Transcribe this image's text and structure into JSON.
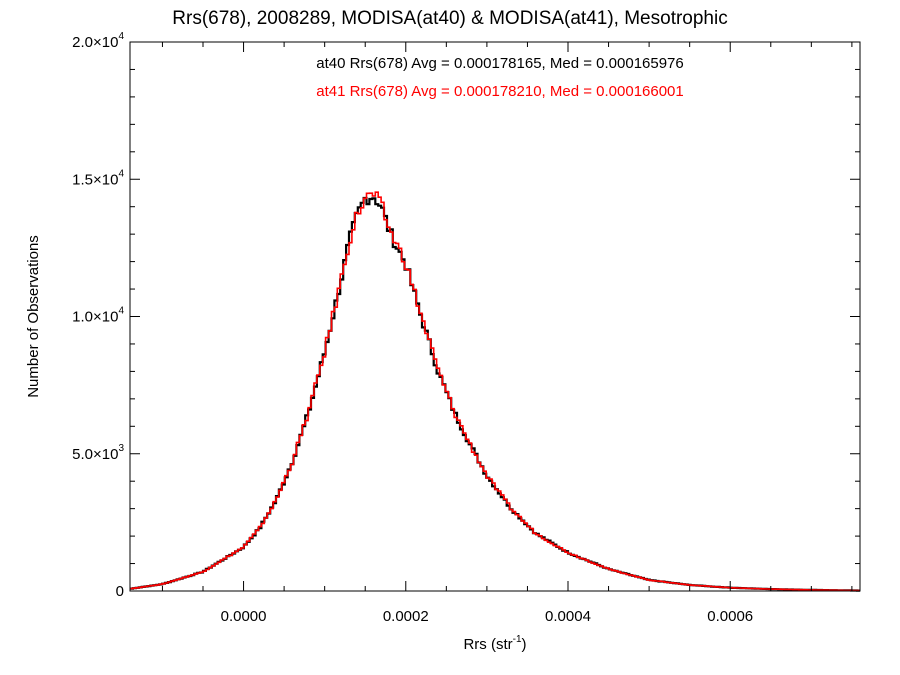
{
  "chart_data": {
    "type": "line",
    "title": "Rrs(678), 2008289, MODISA(at40) & MODISA(at41), Mesotrophic",
    "xlabel": "Rrs (str",
    "xlabel_sup": "-1",
    "xlabel_close": ")",
    "ylabel": "Number of Observations",
    "xlim": [
      -0.00014,
      0.00076
    ],
    "ylim": [
      0,
      20000
    ],
    "x_ticks": [
      {
        "value": 0.0,
        "label": "0.0000"
      },
      {
        "value": 0.0002,
        "label": "0.0002"
      },
      {
        "value": 0.0004,
        "label": "0.0004"
      },
      {
        "value": 0.0006,
        "label": "0.0006"
      }
    ],
    "y_ticks": [
      {
        "value": 0,
        "mant": "0",
        "exp": ""
      },
      {
        "value": 5000,
        "mant": "5.0×10",
        "exp": "3"
      },
      {
        "value": 10000,
        "mant": "1.0×10",
        "exp": "4"
      },
      {
        "value": 15000,
        "mant": "1.5×10",
        "exp": "4"
      },
      {
        "value": 20000,
        "mant": "2.0×10",
        "exp": "4"
      }
    ],
    "legend_placement": "top-center",
    "series": [
      {
        "name": "at40 Rrs(678) Avg = 0.000178165, Med = 0.000165976",
        "color": "#000000",
        "curve": [
          [
            -0.00014,
            80
          ],
          [
            -0.0001,
            250
          ],
          [
            -5e-05,
            700
          ],
          [
            0.0,
            1600
          ],
          [
            2e-05,
            2300
          ],
          [
            4e-05,
            3300
          ],
          [
            6e-05,
            4700
          ],
          [
            8e-05,
            6500
          ],
          [
            0.0001,
            8700
          ],
          [
            0.00012,
            11300
          ],
          [
            0.00013,
            12700
          ],
          [
            0.00014,
            13700
          ],
          [
            0.00015,
            14300
          ],
          [
            0.00016,
            14400
          ],
          [
            0.00017,
            14000
          ],
          [
            0.00018,
            13100
          ],
          [
            0.0002,
            11900
          ],
          [
            0.00022,
            9900
          ],
          [
            0.00024,
            8000
          ],
          [
            0.00026,
            6500
          ],
          [
            0.00028,
            5300
          ],
          [
            0.0003,
            4200
          ],
          [
            0.00033,
            3000
          ],
          [
            0.00036,
            2100
          ],
          [
            0.0004,
            1400
          ],
          [
            0.00045,
            800
          ],
          [
            0.0005,
            400
          ],
          [
            0.00055,
            220
          ],
          [
            0.0006,
            120
          ],
          [
            0.00065,
            70
          ],
          [
            0.0007,
            40
          ],
          [
            0.00076,
            15
          ]
        ]
      },
      {
        "name": "at41 Rrs(678) Avg = 0.000178210, Med = 0.000166001",
        "color": "#ff0000",
        "curve": [
          [
            -0.00014,
            80
          ],
          [
            -0.0001,
            250
          ],
          [
            -5e-05,
            700
          ],
          [
            0.0,
            1600
          ],
          [
            2e-05,
            2300
          ],
          [
            4e-05,
            3300
          ],
          [
            6e-05,
            4700
          ],
          [
            8e-05,
            6500
          ],
          [
            0.0001,
            8700
          ],
          [
            0.00012,
            11300
          ],
          [
            0.00013,
            12700
          ],
          [
            0.00014,
            13700
          ],
          [
            0.00015,
            14300
          ],
          [
            0.00016,
            14450
          ],
          [
            0.00017,
            14050
          ],
          [
            0.00018,
            13150
          ],
          [
            0.0002,
            11950
          ],
          [
            0.00022,
            9950
          ],
          [
            0.00024,
            8050
          ],
          [
            0.00026,
            6500
          ],
          [
            0.00028,
            5300
          ],
          [
            0.0003,
            4200
          ],
          [
            0.00033,
            3000
          ],
          [
            0.00036,
            2100
          ],
          [
            0.0004,
            1400
          ],
          [
            0.00045,
            800
          ],
          [
            0.0005,
            400
          ],
          [
            0.00055,
            220
          ],
          [
            0.0006,
            120
          ],
          [
            0.00065,
            70
          ],
          [
            0.0007,
            40
          ],
          [
            0.00076,
            15
          ]
        ]
      }
    ]
  }
}
